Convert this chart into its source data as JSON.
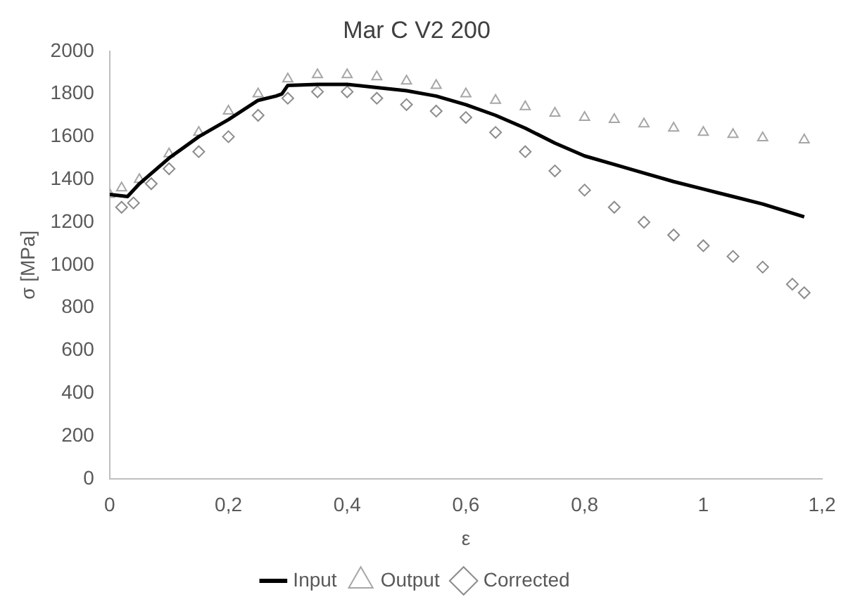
{
  "chart_data": {
    "type": "line",
    "title": "Mar C V2 200",
    "xlabel": "ε",
    "ylabel": "σ [MPa]",
    "xlim": [
      0,
      1.2
    ],
    "xticks": [
      {
        "value": 0,
        "label": "0"
      },
      {
        "value": 0.2,
        "label": "0,2"
      },
      {
        "value": 0.4,
        "label": "0,4"
      },
      {
        "value": 0.6,
        "label": "0,6"
      },
      {
        "value": 0.8,
        "label": "0,8"
      },
      {
        "value": 1,
        "label": "1"
      },
      {
        "value": 1.2,
        "label": "1,2"
      }
    ],
    "ylim": [
      0,
      2000
    ],
    "yticks": [
      0,
      200,
      400,
      600,
      800,
      1000,
      1200,
      1400,
      1600,
      1800,
      2000
    ],
    "grid": false,
    "legend": "bottom",
    "series": [
      {
        "name": "Input",
        "type": "line",
        "color": "#000000",
        "marker": "none",
        "line_style": "solid",
        "x": [
          0,
          0.03,
          0.05,
          0.1,
          0.15,
          0.2,
          0.25,
          0.28,
          0.29,
          0.3,
          0.35,
          0.4,
          0.45,
          0.5,
          0.55,
          0.6,
          0.65,
          0.7,
          0.75,
          0.8,
          0.85,
          0.9,
          0.95,
          1.0,
          1.05,
          1.1,
          1.17
        ],
        "values": [
          1330,
          1320,
          1380,
          1500,
          1600,
          1680,
          1770,
          1790,
          1800,
          1840,
          1845,
          1845,
          1830,
          1815,
          1790,
          1750,
          1700,
          1640,
          1570,
          1510,
          1470,
          1430,
          1390,
          1355,
          1320,
          1285,
          1225
        ]
      },
      {
        "name": "Output",
        "type": "scatter",
        "color": "#a6a6a6",
        "marker": "triangle",
        "x": [
          0,
          0.02,
          0.05,
          0.1,
          0.15,
          0.2,
          0.25,
          0.3,
          0.35,
          0.4,
          0.45,
          0.5,
          0.55,
          0.6,
          0.65,
          0.7,
          0.75,
          0.8,
          0.85,
          0.9,
          0.95,
          1.0,
          1.05,
          1.1,
          1.17
        ],
        "values": [
          1330,
          1360,
          1400,
          1520,
          1620,
          1720,
          1800,
          1870,
          1890,
          1890,
          1880,
          1860,
          1840,
          1800,
          1770,
          1740,
          1710,
          1690,
          1680,
          1660,
          1640,
          1620,
          1610,
          1595,
          1585
        ]
      },
      {
        "name": "Corrected",
        "type": "scatter",
        "color": "#8c8c8c",
        "marker": "diamond",
        "x": [
          0.02,
          0.04,
          0.07,
          0.1,
          0.15,
          0.2,
          0.25,
          0.3,
          0.35,
          0.4,
          0.45,
          0.5,
          0.55,
          0.6,
          0.65,
          0.7,
          0.75,
          0.8,
          0.85,
          0.9,
          0.95,
          1.0,
          1.05,
          1.1,
          1.15,
          1.17
        ],
        "values": [
          1270,
          1290,
          1380,
          1450,
          1530,
          1600,
          1700,
          1780,
          1810,
          1810,
          1780,
          1750,
          1720,
          1690,
          1620,
          1530,
          1440,
          1350,
          1270,
          1200,
          1140,
          1090,
          1040,
          990,
          910,
          870
        ]
      }
    ]
  }
}
